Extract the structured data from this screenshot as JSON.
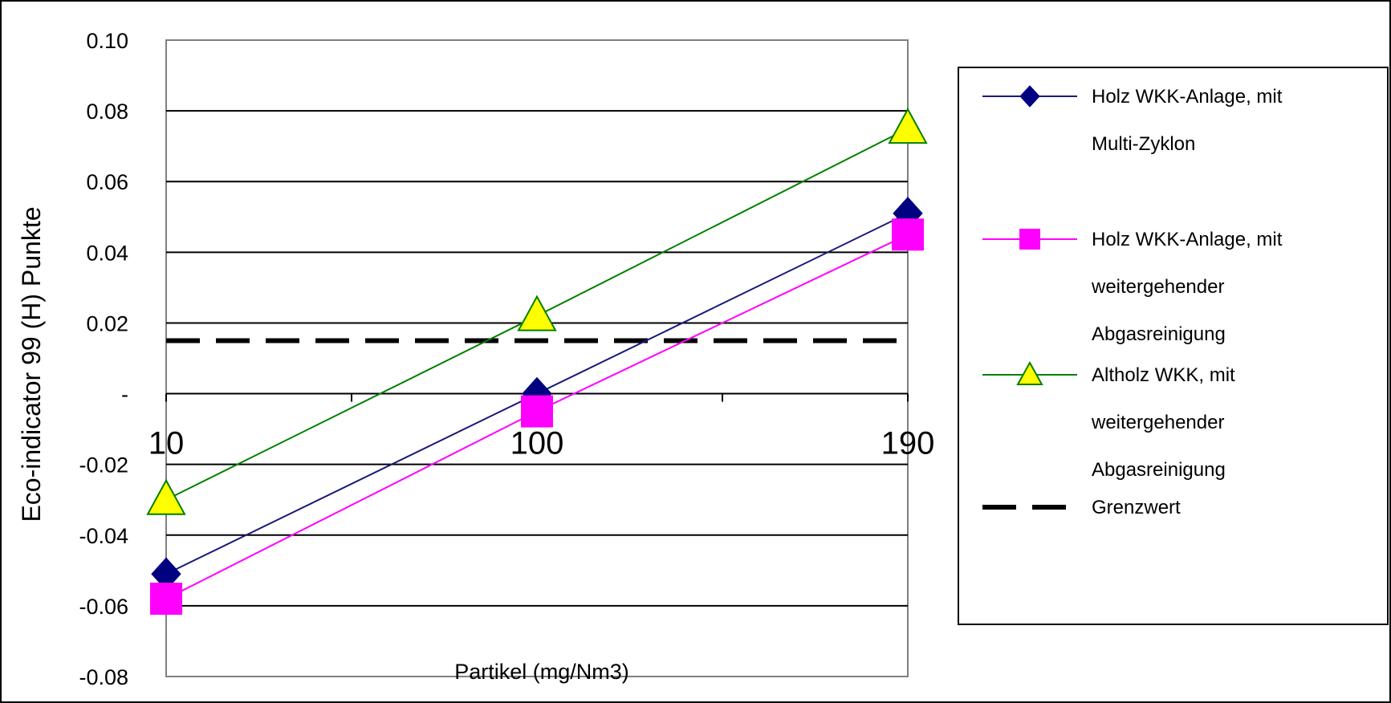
{
  "chart_data": {
    "type": "line",
    "title": "",
    "xlabel": "Partikel (mg/Nm3)",
    "ylabel": "Eco-indicator 99 (H) Punkte",
    "categories": [
      "10",
      "100",
      "190"
    ],
    "ylim": [
      -0.08,
      0.1
    ],
    "ytick_labels": [
      "0.10",
      "0.08",
      "0.06",
      "0.04",
      "0.02",
      "-",
      "-0.02",
      "-0.04",
      "-0.06",
      "-0.08"
    ],
    "yticks": [
      0.1,
      0.08,
      0.06,
      0.04,
      0.02,
      0,
      -0.02,
      -0.04,
      -0.06,
      -0.08
    ],
    "grid": "horizontal",
    "legend_position": "right",
    "series": [
      {
        "name": "Holz WKK-Anlage, mit Multi-Zyklon",
        "legend_lines": [
          "Holz WKK-Anlage, mit",
          "Multi-Zyklon"
        ],
        "values": [
          -0.051,
          0,
          0.051
        ],
        "color": "#1a1a7a",
        "marker": "diamond",
        "marker_color": "#000080"
      },
      {
        "name": "Holz WKK-Anlage, mit weitergehender Abgasreinigung",
        "legend_lines": [
          "Holz WKK-Anlage, mit",
          "weitergehender",
          "Abgasreinigung"
        ],
        "values": [
          -0.058,
          -0.005,
          0.045
        ],
        "color": "#ff00ff",
        "marker": "square",
        "marker_color": "#ff00ff"
      },
      {
        "name": "Altholz WKK, mit weitergehender Abgasreinigung",
        "legend_lines": [
          "Altholz WKK, mit",
          "weitergehender",
          "Abgasreinigung"
        ],
        "values": [
          -0.03,
          0.022,
          0.075
        ],
        "color": "#008000",
        "marker": "triangle",
        "marker_color": "#ffff00"
      }
    ],
    "reference_line": {
      "name": "Grenzwert",
      "legend_lines": [
        "Grenzwert"
      ],
      "value": 0.015,
      "color": "#000000",
      "style": "dashed"
    }
  }
}
